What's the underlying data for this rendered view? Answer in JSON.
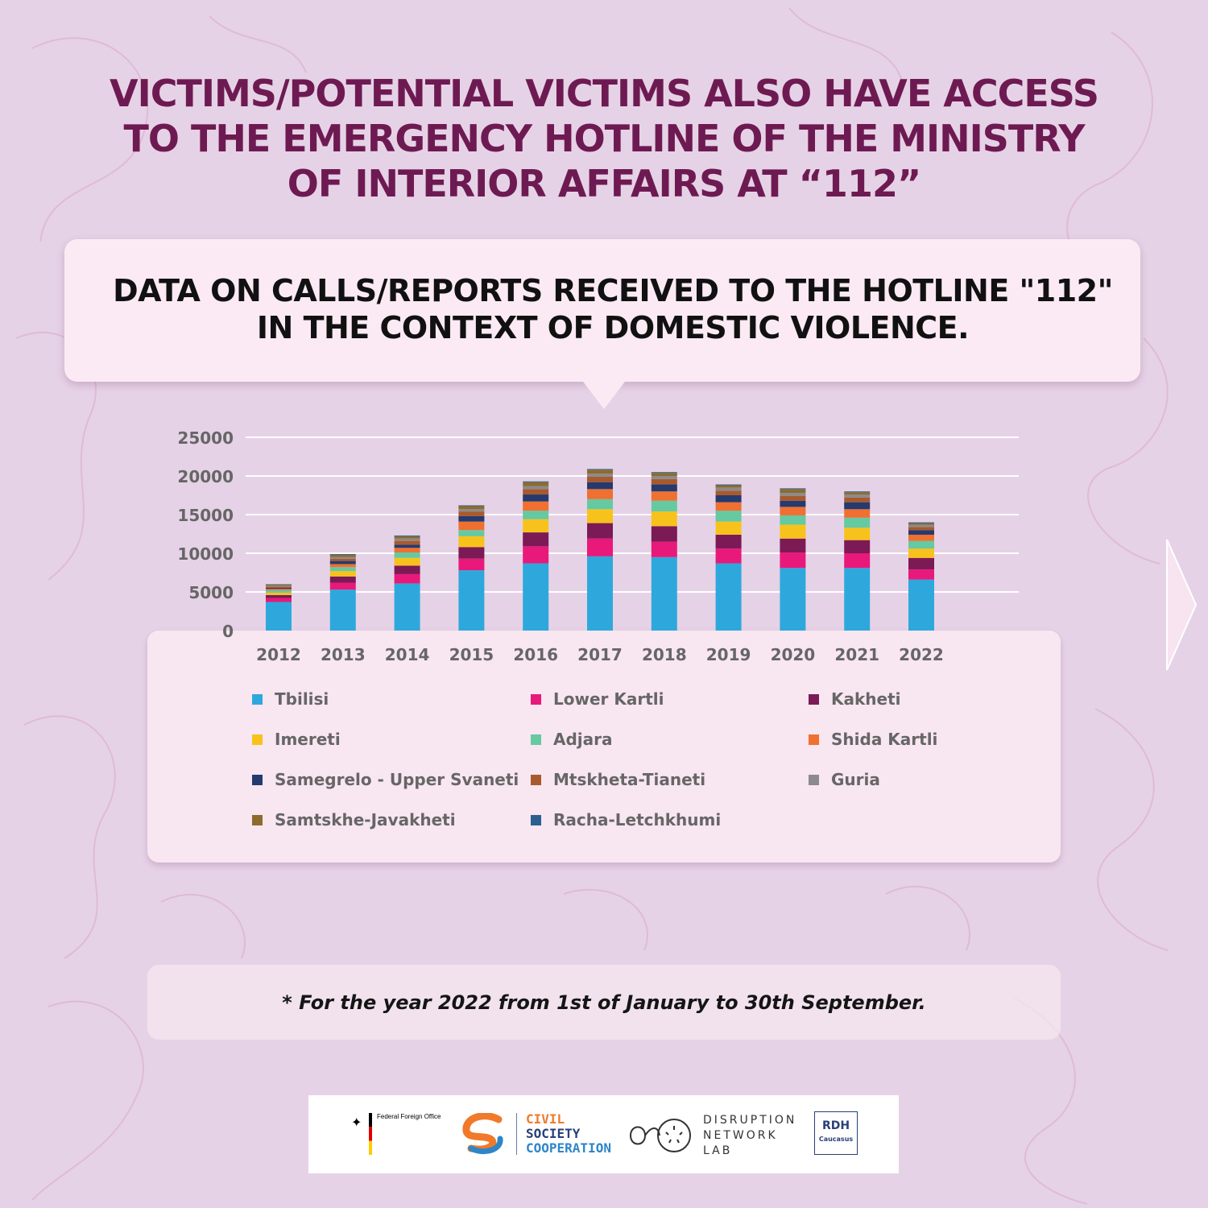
{
  "headline": {
    "line1": "VICTIMS/POTENTIAL VICTIMS ALSO HAVE ACCESS",
    "line2": "TO THE EMERGENCY HOTLINE OF THE MINISTRY",
    "line3": "OF INTERIOR AFFAIRS AT “112”"
  },
  "subtitle": {
    "line1": "DATA ON CALLS/REPORTS RECEIVED TO THE HOTLINE \"112\"",
    "line2": "IN THE CONTEXT OF DOMESTIC VIOLENCE."
  },
  "footnote": "* For the year 2022 from 1st of January to 30th September.",
  "logos": {
    "ffo": "Federal Foreign Office",
    "csc": [
      "CIVIL",
      "SOCIETY",
      "COOPERATION"
    ],
    "dnl": [
      "DISRUPTION",
      "NETWORK",
      "LAB"
    ],
    "rdh_main": "RDH",
    "rdh_sub": "Caucasus"
  },
  "icons": {
    "next_arrow": "chevron-right-icon",
    "ffo_emblem": "eagle-icon"
  },
  "colors": {
    "headline": "#6e1a52",
    "background": "#e6d2e6",
    "panel": "#fbeaf3"
  },
  "chart_data": {
    "type": "bar",
    "stacked": true,
    "title": "",
    "xlabel": "",
    "ylabel": "",
    "ylim": [
      0,
      25000
    ],
    "yticks": [
      0,
      5000,
      10000,
      15000,
      20000,
      25000
    ],
    "grid": true,
    "legend_position": "bottom",
    "categories": [
      "2012",
      "2013",
      "2014",
      "2015",
      "2016",
      "2017",
      "2018",
      "2019",
      "2020",
      "2021",
      "2022"
    ],
    "series": [
      {
        "name": "Tbilisi",
        "color": "#2ea8dc",
        "values": [
          3700,
          5300,
          6100,
          7800,
          8700,
          9600,
          9500,
          8700,
          8100,
          8100,
          6600
        ]
      },
      {
        "name": "Lower Kartli",
        "color": "#e8197a",
        "values": [
          500,
          900,
          1200,
          1500,
          2200,
          2300,
          2000,
          1900,
          2000,
          1900,
          1300
        ]
      },
      {
        "name": "Kakheti",
        "color": "#7c1a56",
        "values": [
          400,
          800,
          1100,
          1500,
          1800,
          2000,
          2000,
          1800,
          1800,
          1700,
          1500
        ]
      },
      {
        "name": "Imereti",
        "color": "#f8c21c",
        "values": [
          300,
          700,
          1000,
          1400,
          1700,
          1800,
          1900,
          1700,
          1800,
          1600,
          1200
        ]
      },
      {
        "name": "Adjara",
        "color": "#65c9a2",
        "values": [
          300,
          500,
          700,
          800,
          1100,
          1300,
          1400,
          1400,
          1200,
          1300,
          1000
        ]
      },
      {
        "name": "Shida Kartli",
        "color": "#ef7030",
        "values": [
          200,
          400,
          600,
          1100,
          1200,
          1300,
          1200,
          1100,
          1100,
          1100,
          800
        ]
      },
      {
        "name": "Samegrelo - Upper Svaneti",
        "color": "#253a6e",
        "values": [
          150,
          400,
          400,
          700,
          900,
          900,
          900,
          900,
          800,
          900,
          600
        ]
      },
      {
        "name": "Mtskheta-Tianeti",
        "color": "#a85a2e",
        "values": [
          150,
          300,
          500,
          600,
          700,
          700,
          700,
          600,
          600,
          600,
          400
        ]
      },
      {
        "name": "Guria",
        "color": "#8c8a8c",
        "values": [
          100,
          200,
          300,
          300,
          400,
          400,
          400,
          400,
          400,
          400,
          300
        ]
      },
      {
        "name": "Samtskhe-Javakheti",
        "color": "#8c6c2e",
        "values": [
          150,
          300,
          300,
          400,
          500,
          500,
          400,
          300,
          500,
          300,
          200
        ]
      },
      {
        "name": "Racha-Letchkhumi",
        "color": "#2c5f8f",
        "values": [
          50,
          100,
          100,
          100,
          100,
          100,
          100,
          100,
          100,
          100,
          100
        ]
      }
    ]
  }
}
